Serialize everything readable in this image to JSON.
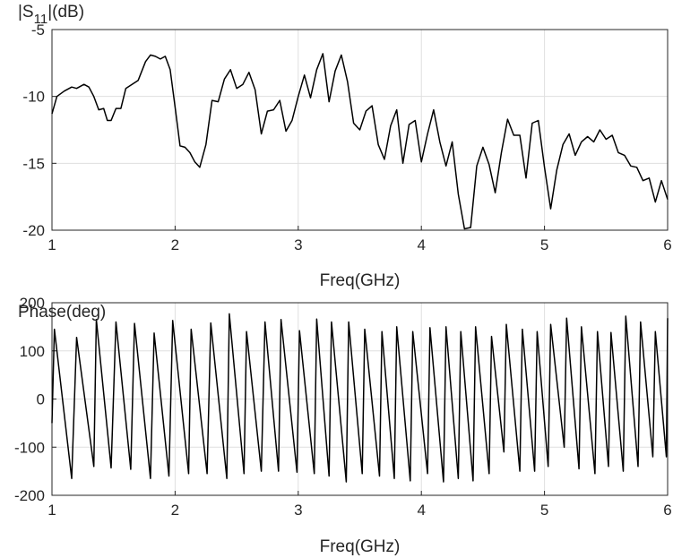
{
  "chart_data": [
    {
      "type": "line",
      "title": "",
      "ylabel_main": "|S",
      "ylabel_sub": "11",
      "ylabel_tail": "|(dB)",
      "xlabel": "Freq(GHz)",
      "xlim": [
        1,
        6
      ],
      "ylim": [
        -20,
        -5
      ],
      "xticks": [
        1,
        2,
        3,
        4,
        5,
        6
      ],
      "yticks": [
        -20,
        -15,
        -10,
        -5
      ],
      "grid": true,
      "series": [
        {
          "color": "#000000",
          "x": [
            1.0,
            1.04,
            1.1,
            1.16,
            1.2,
            1.26,
            1.3,
            1.34,
            1.38,
            1.42,
            1.45,
            1.48,
            1.52,
            1.56,
            1.6,
            1.65,
            1.7,
            1.76,
            1.8,
            1.84,
            1.88,
            1.92,
            1.96,
            2.0,
            2.04,
            2.08,
            2.12,
            2.16,
            2.2,
            2.25,
            2.3,
            2.35,
            2.4,
            2.45,
            2.5,
            2.55,
            2.6,
            2.65,
            2.7,
            2.75,
            2.8,
            2.85,
            2.9,
            2.95,
            3.0,
            3.05,
            3.1,
            3.15,
            3.2,
            3.25,
            3.3,
            3.35,
            3.4,
            3.45,
            3.5,
            3.55,
            3.6,
            3.65,
            3.7,
            3.75,
            3.8,
            3.85,
            3.9,
            3.95,
            4.0,
            4.05,
            4.1,
            4.15,
            4.2,
            4.25,
            4.3,
            4.35,
            4.4,
            4.45,
            4.5,
            4.55,
            4.6,
            4.65,
            4.7,
            4.75,
            4.8,
            4.85,
            4.9,
            4.95,
            5.0,
            5.05,
            5.1,
            5.15,
            5.2,
            5.25,
            5.3,
            5.35,
            5.4,
            5.45,
            5.5,
            5.55,
            5.6,
            5.65,
            5.7,
            5.75,
            5.8,
            5.85,
            5.9,
            5.95,
            6.0
          ],
          "y": [
            -11.3,
            -10.0,
            -9.6,
            -9.3,
            -9.4,
            -9.1,
            -9.3,
            -10.0,
            -11.0,
            -10.9,
            -11.8,
            -11.8,
            -10.9,
            -10.9,
            -9.4,
            -9.1,
            -8.8,
            -7.4,
            -6.9,
            -7.0,
            -7.2,
            -7.0,
            -8.0,
            -10.8,
            -13.7,
            -13.8,
            -14.2,
            -14.9,
            -15.3,
            -13.6,
            -10.3,
            -10.4,
            -8.7,
            -8.0,
            -9.4,
            -9.1,
            -8.2,
            -9.5,
            -12.8,
            -11.1,
            -11.0,
            -10.3,
            -12.6,
            -11.8,
            -10.0,
            -8.4,
            -10.1,
            -8.0,
            -6.8,
            -10.4,
            -8.1,
            -6.9,
            -8.9,
            -12.0,
            -12.5,
            -11.1,
            -10.7,
            -13.6,
            -14.7,
            -12.2,
            -11.0,
            -15.0,
            -12.1,
            -11.8,
            -14.9,
            -12.8,
            -11.0,
            -13.4,
            -15.2,
            -13.4,
            -17.3,
            -19.9,
            -19.8,
            -15.2,
            -13.8,
            -15.1,
            -17.2,
            -14.2,
            -11.7,
            -12.9,
            -12.9,
            -16.1,
            -12.0,
            -11.8,
            -15.3,
            -18.4,
            -15.5,
            -13.6,
            -12.8,
            -14.4,
            -13.4,
            -13.0,
            -13.4,
            -12.5,
            -13.2,
            -12.9,
            -14.2,
            -14.4,
            -15.2,
            -15.3,
            -16.3,
            -16.1,
            -17.9,
            -16.3,
            -17.7
          ]
        }
      ]
    },
    {
      "type": "line",
      "title": "",
      "ylabel": "Phase(deg)",
      "xlabel": "Freq(GHz)",
      "xlim": [
        1,
        6
      ],
      "ylim": [
        -200,
        200
      ],
      "xticks": [
        1,
        2,
        3,
        4,
        5,
        6
      ],
      "yticks": [
        -200,
        -100,
        0,
        100,
        200
      ],
      "grid": true,
      "series": [
        {
          "color": "#000000",
          "x": [
            1.0,
            1.02,
            1.16,
            1.2,
            1.34,
            1.36,
            1.48,
            1.52,
            1.64,
            1.67,
            1.8,
            1.83,
            1.95,
            1.98,
            2.11,
            2.13,
            2.26,
            2.29,
            2.42,
            2.44,
            2.56,
            2.58,
            2.7,
            2.73,
            2.84,
            2.86,
            2.99,
            3.01,
            3.13,
            3.15,
            3.25,
            3.27,
            3.39,
            3.41,
            3.52,
            3.54,
            3.66,
            3.68,
            3.78,
            3.8,
            3.91,
            3.93,
            4.05,
            4.07,
            4.18,
            4.2,
            4.3,
            4.32,
            4.42,
            4.44,
            4.55,
            4.57,
            4.67,
            4.69,
            4.8,
            4.82,
            4.92,
            4.94,
            5.03,
            5.05,
            5.16,
            5.18,
            5.28,
            5.3,
            5.41,
            5.43,
            5.52,
            5.54,
            5.64,
            5.66,
            5.76,
            5.78,
            5.88,
            5.9,
            5.99,
            6.0
          ],
          "y": [
            -50,
            145,
            -165,
            128,
            -140,
            165,
            -143,
            160,
            -146,
            157,
            -165,
            137,
            -160,
            163,
            -155,
            145,
            -155,
            158,
            -165,
            177,
            -155,
            140,
            -150,
            160,
            -150,
            165,
            -152,
            142,
            -155,
            166,
            -160,
            160,
            -172,
            160,
            -155,
            145,
            -160,
            140,
            -165,
            150,
            -170,
            140,
            -155,
            148,
            -172,
            150,
            -165,
            140,
            -170,
            150,
            -155,
            130,
            -110,
            155,
            -150,
            145,
            -150,
            140,
            -140,
            155,
            -100,
            168,
            -145,
            150,
            -155,
            140,
            -140,
            138,
            -150,
            172,
            -140,
            160,
            -120,
            140,
            -120,
            168
          ]
        }
      ]
    }
  ]
}
